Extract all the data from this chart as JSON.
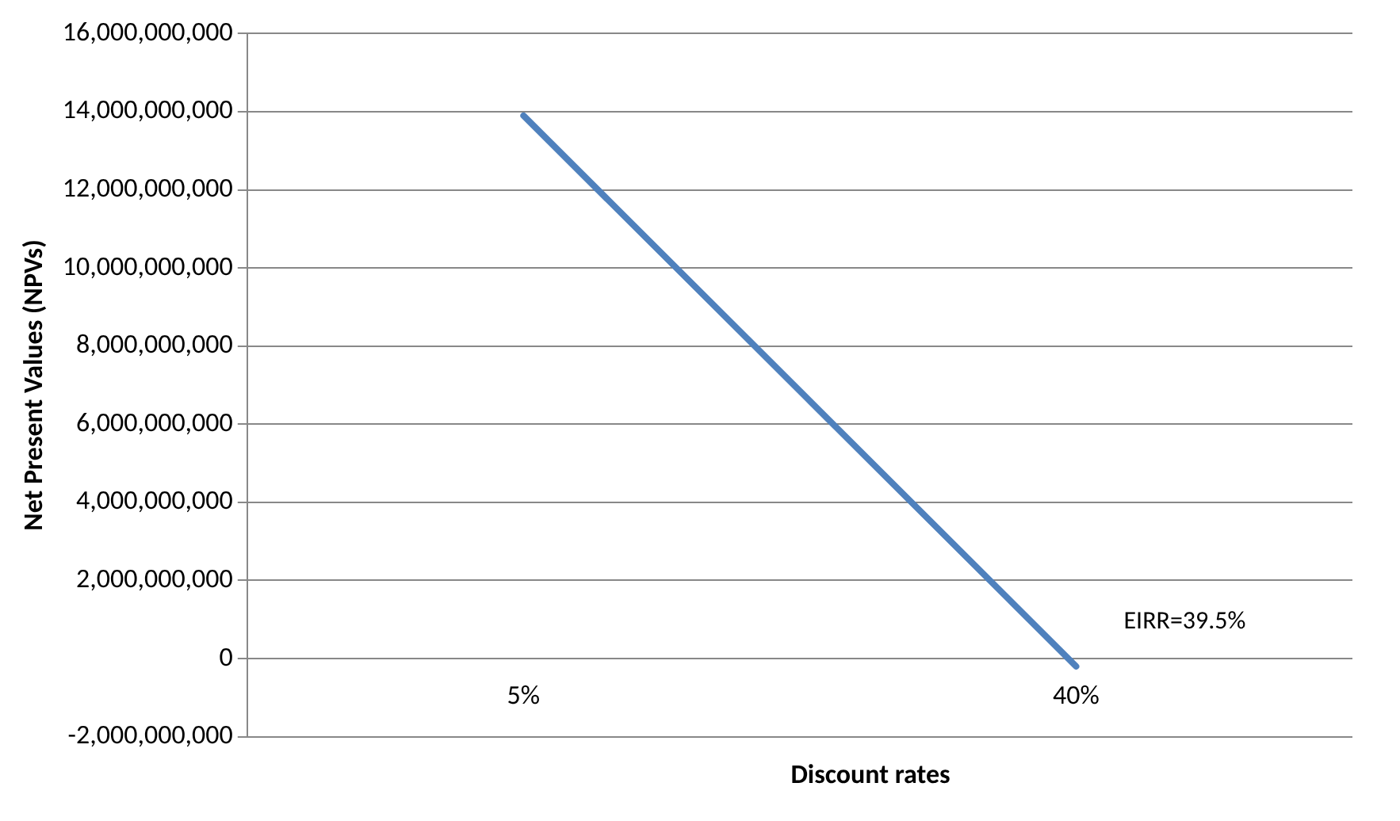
{
  "chart_data": {
    "type": "line",
    "xlabel": "Discount rates",
    "ylabel": "Net Present Values (NPVs)",
    "categories": [
      "5%",
      "40%"
    ],
    "series": [
      {
        "color": "#4f81bd",
        "values": [
          13900000000,
          -200000000
        ]
      }
    ],
    "ylim": [
      -2000000000,
      16000000000
    ],
    "yticks": [
      {
        "value": -2000000000,
        "label": "-2,000,000,000"
      },
      0,
      {
        "value": 2000000000,
        "label": "2,000,000,000"
      },
      {
        "value": 4000000000,
        "label": "4,000,000,000"
      },
      {
        "value": 6000000000,
        "label": "6,000,000,000"
      },
      {
        "value": 8000000000,
        "label": "8,000,000,000"
      },
      {
        "value": 10000000000,
        "label": "10,000,000,000"
      },
      {
        "value": 12000000000,
        "label": "12,000,000,000"
      },
      {
        "value": 14000000000,
        "label": "14,000,000,000"
      },
      {
        "value": 16000000000,
        "label": "16,000,000,000"
      }
    ],
    "grid": "y",
    "legend": false,
    "marker": "none",
    "line_style": "solid",
    "annotations": [
      {
        "text": "EIRR=39.5%",
        "x": "40%",
        "y": -200000000
      }
    ]
  }
}
